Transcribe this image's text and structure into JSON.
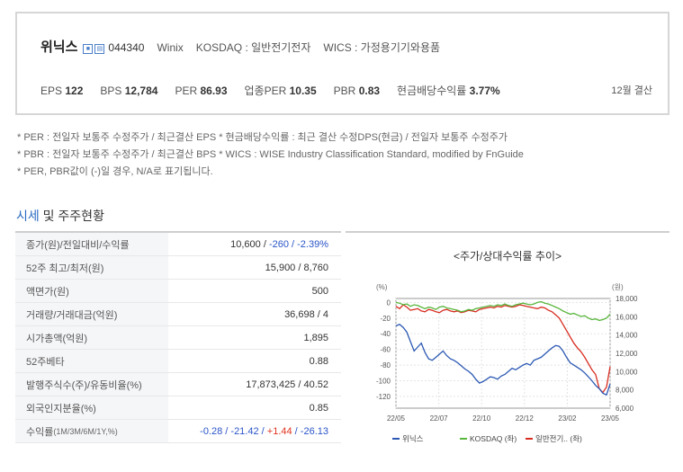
{
  "header": {
    "company": "위닉스",
    "code": "044340",
    "eng_name": "Winix",
    "market": "KOSDAQ : 일반전기전자",
    "wics": "WICS : 가정용기기와용품",
    "settle": "12월 결산"
  },
  "metrics": [
    {
      "label": "EPS",
      "value": "122"
    },
    {
      "label": "BPS",
      "value": "12,784"
    },
    {
      "label": "PER",
      "value": "86.93"
    },
    {
      "label": "업종PER",
      "value": "10.35"
    },
    {
      "label": "PBR",
      "value": "0.83"
    },
    {
      "label": "현금배당수익률",
      "value": "3.77%"
    }
  ],
  "notes": [
    "* PER : 전일자 보통주 수정주가 / 최근결산 EPS * 현금배당수익률 : 최근 결산 수정DPS(현금) / 전일자 보통주 수정주가",
    "* PBR : 전일자 보통주 수정주가 / 최근결산 BPS * WICS : WISE Industry Classification Standard, modified by FnGuide",
    "* PER, PBR값이 (-)일 경우, N/A로 표기됩니다."
  ],
  "section": {
    "accent": "시세",
    "rest": " 및 주주현황"
  },
  "table": [
    {
      "label": "종가(원)/전일대비/수익률",
      "v1": "10,600 / ",
      "v2": "-260 / -2.39%"
    },
    {
      "label": "52주 최고/최저(원)",
      "v1": "15,900 / 8,760"
    },
    {
      "label": "액면가(원)",
      "v1": "500"
    },
    {
      "label": "거래량/거래대금(억원)",
      "v1": "36,698 / 4"
    },
    {
      "label": "시가총액(억원)",
      "v1": "1,895"
    },
    {
      "label": "52주베타",
      "v1": "0.88"
    },
    {
      "label": "발행주식수(주)/유동비율(%)",
      "v1": "17,873,425 / 40.52"
    },
    {
      "label": "외국인지분율(%)",
      "v1": "0.85"
    }
  ],
  "returns": {
    "label_main": "수익률",
    "label_small": "(1M/3M/6M/1Y,%)",
    "r1": "-0.28",
    "r2": "-21.42",
    "r3": "+1.44",
    "r4": "-26.13",
    "sep": " / "
  },
  "colors": {
    "accent": "#2a6bc2",
    "negative": "#2a55c8",
    "positive": "#e0331f"
  },
  "chart_data": {
    "type": "line",
    "title": "<주가/상대수익률 추이>",
    "left_unit": "(%)",
    "right_unit": "(원)",
    "x_ticks": [
      "22/05",
      "22/07",
      "22/10",
      "22/12",
      "23/02",
      "23/05"
    ],
    "left_ticks": [
      0,
      -20,
      -40,
      -60,
      -80,
      -100,
      -120
    ],
    "right_ticks": [
      "18,000",
      "16,000",
      "14,000",
      "12,000",
      "10,000",
      "8,000",
      "6,000"
    ],
    "left_range": [
      -135,
      5
    ],
    "right_range": [
      6000,
      18000
    ],
    "legend_position": "bottom",
    "series": [
      {
        "name": "위닉스",
        "color": "#2b58b3",
        "axis": "left",
        "values": [
          -30,
          -28,
          -32,
          -38,
          -50,
          -62,
          -57,
          -52,
          -64,
          -72,
          -74,
          -70,
          -66,
          -62,
          -68,
          -72,
          -74,
          -77,
          -81,
          -85,
          -88,
          -92,
          -98,
          -103,
          -101,
          -98,
          -95,
          -96,
          -98,
          -94,
          -92,
          -88,
          -84,
          -86,
          -83,
          -80,
          -78,
          -80,
          -74,
          -72,
          -70,
          -66,
          -62,
          -58,
          -55,
          -56,
          -62,
          -70,
          -77,
          -80,
          -83,
          -86,
          -90,
          -95,
          -100,
          -106,
          -110,
          -116,
          -118,
          -104
        ]
      },
      {
        "name": "KOSDAQ (좌)",
        "color": "#58b63c",
        "axis": "left",
        "values": [
          0,
          -1,
          -3,
          -2,
          -5,
          -3,
          -4,
          -6,
          -8,
          -6,
          -7,
          -9,
          -6,
          -5,
          -7,
          -8,
          -9,
          -10,
          -12,
          -11,
          -9,
          -10,
          -8,
          -7,
          -6,
          -5,
          -4,
          -5,
          -3,
          -4,
          -2,
          -4,
          -5,
          -3,
          -2,
          -1,
          -2,
          -3,
          -2,
          0,
          1,
          -1,
          -2,
          -4,
          -6,
          -8,
          -11,
          -13,
          -15,
          -14,
          -16,
          -18,
          -17,
          -20,
          -22,
          -21,
          -23,
          -22,
          -20,
          -15
        ]
      },
      {
        "name": "일반전기.. (좌)",
        "color": "#d82c20",
        "axis": "left",
        "values": [
          -5,
          -8,
          -3,
          -6,
          -10,
          -9,
          -8,
          -11,
          -12,
          -9,
          -10,
          -12,
          -13,
          -10,
          -9,
          -11,
          -12,
          -11,
          -13,
          -12,
          -10,
          -11,
          -12,
          -9,
          -8,
          -7,
          -6,
          -7,
          -5,
          -6,
          -4,
          -5,
          -6,
          -5,
          -3,
          -4,
          -5,
          -6,
          -7,
          -8,
          -6,
          -7,
          -10,
          -12,
          -16,
          -20,
          -28,
          -36,
          -44,
          -52,
          -58,
          -63,
          -70,
          -78,
          -86,
          -92,
          -110,
          -115,
          -108,
          -82
        ]
      }
    ]
  }
}
